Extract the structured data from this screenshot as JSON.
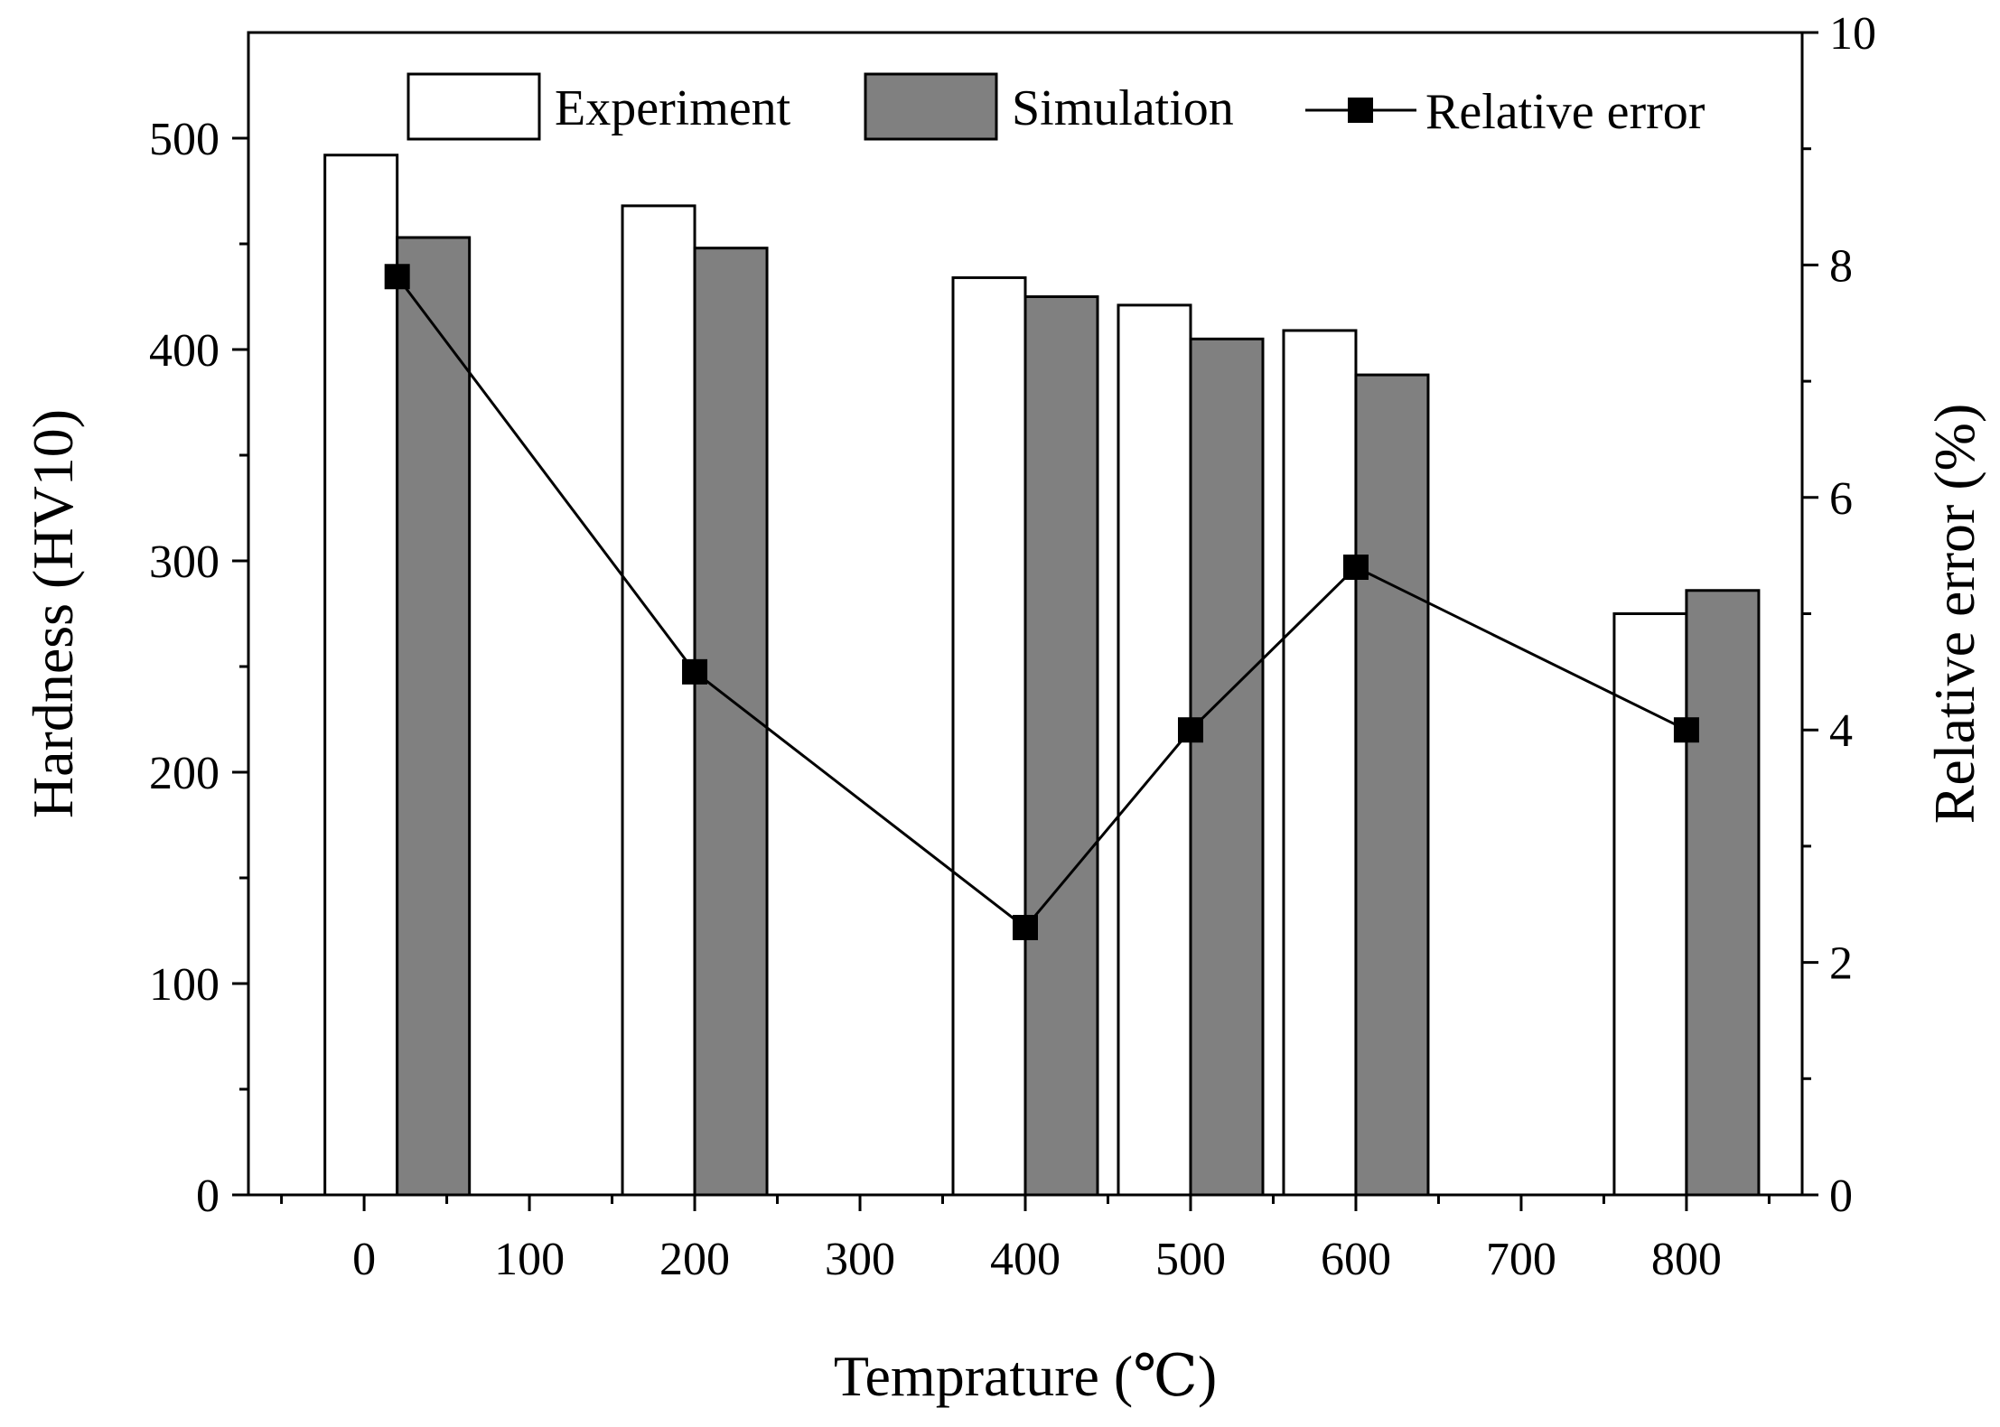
{
  "chart_data": {
    "type": "bar",
    "title": "",
    "xlabel": "Temprature (℃)",
    "ylabel": "Hardness (HV10)",
    "y2label": "Relative error (%)",
    "xlim": [
      -70,
      870
    ],
    "ylim": [
      0,
      550
    ],
    "y2lim": [
      0,
      10
    ],
    "x_ticks": [
      0,
      100,
      200,
      300,
      400,
      500,
      600,
      700,
      800
    ],
    "x_tick_labels": [
      "0",
      "100",
      "200",
      "300",
      "400",
      "500",
      "600",
      "700",
      "800"
    ],
    "y_ticks": [
      0,
      100,
      200,
      300,
      400,
      500
    ],
    "y_tick_labels": [
      "0",
      "100",
      "200",
      "300",
      "400",
      "500"
    ],
    "y2_ticks": [
      0,
      2,
      4,
      6,
      8,
      10
    ],
    "y2_tick_labels": [
      "0",
      "2",
      "4",
      "6",
      "8",
      "10"
    ],
    "categories": [
      20,
      200,
      400,
      500,
      600,
      800
    ],
    "series": [
      {
        "name": "Experiment",
        "kind": "bar",
        "axis": "left",
        "color": "#ffffff",
        "values": [
          492,
          468,
          434,
          421,
          409,
          275
        ]
      },
      {
        "name": "Simulation",
        "kind": "bar",
        "axis": "left",
        "color": "#808080",
        "values": [
          453,
          448,
          425,
          405,
          388,
          286
        ]
      },
      {
        "name": "Relative error",
        "kind": "line",
        "axis": "right",
        "color": "#000000",
        "values": [
          7.9,
          4.5,
          2.3,
          4.0,
          5.4,
          4.0
        ]
      }
    ],
    "legend": {
      "position": "top",
      "entries": [
        "Experiment",
        "Simulation",
        "Relative error"
      ]
    },
    "grid": false
  }
}
